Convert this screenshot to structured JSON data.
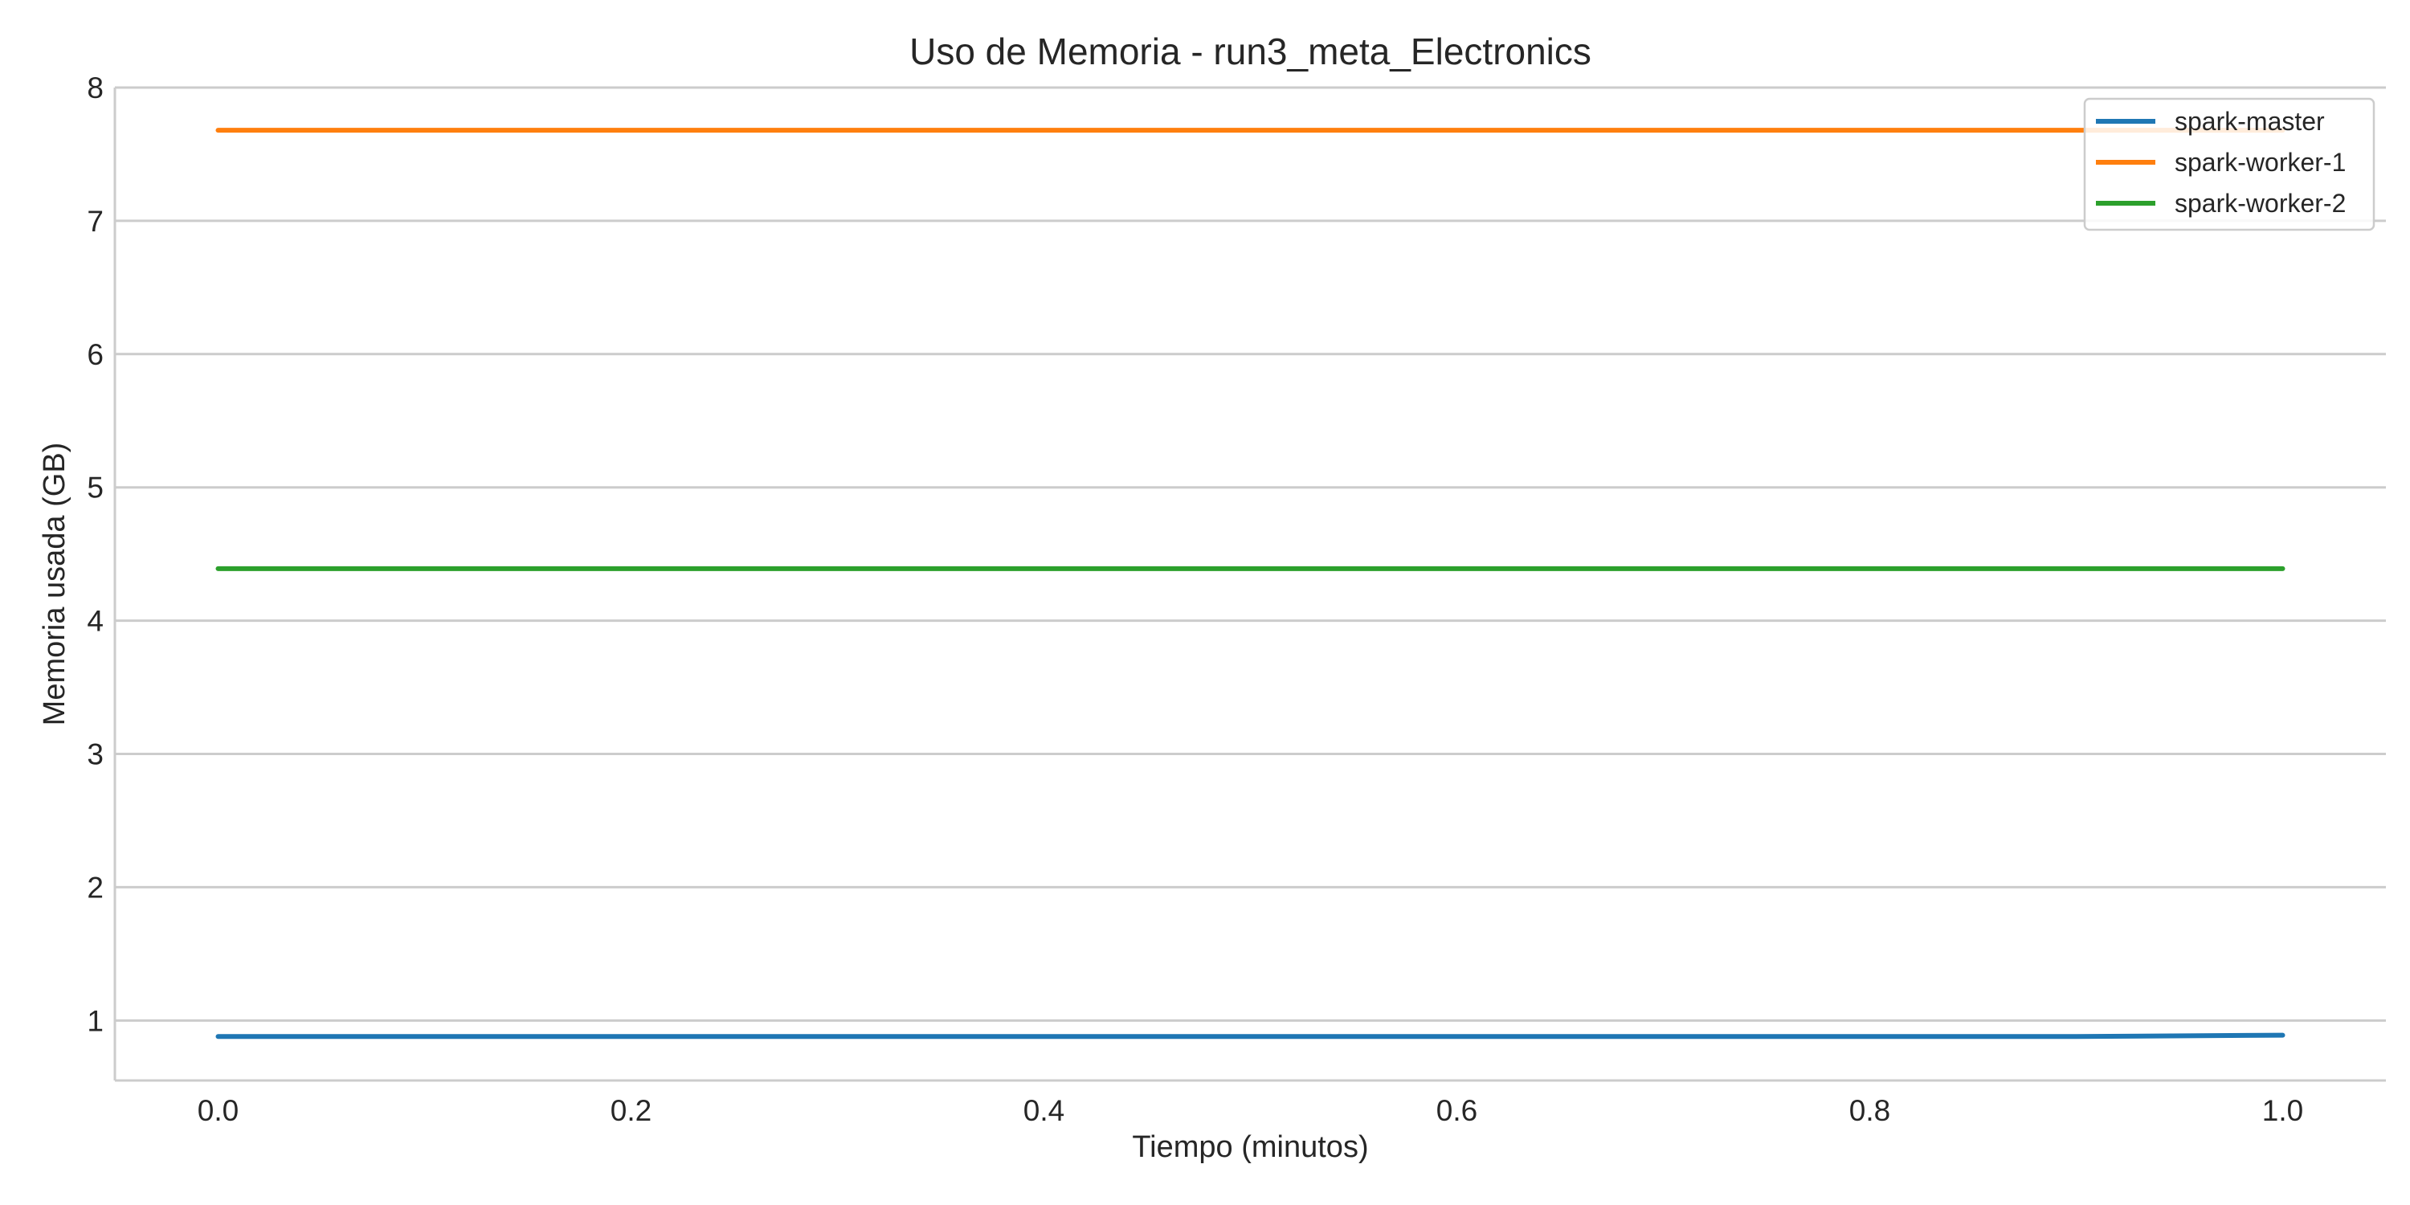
{
  "chart_data": {
    "type": "line",
    "title": "Uso de Memoria - run3_meta_Electronics",
    "xlabel": "Tiempo (minutos)",
    "ylabel": "Memoria usada (GB)",
    "xlim": [
      -0.05,
      1.05
    ],
    "ylim": [
      0.55,
      8.0
    ],
    "xticks": [
      0.0,
      0.2,
      0.4,
      0.6,
      0.8,
      1.0
    ],
    "xtick_labels": [
      "0.0",
      "0.2",
      "0.4",
      "0.6",
      "0.8",
      "1.0"
    ],
    "yticks": [
      1,
      2,
      3,
      4,
      5,
      6,
      7,
      8
    ],
    "ytick_labels": [
      "1",
      "2",
      "3",
      "4",
      "5",
      "6",
      "7",
      "8"
    ],
    "grid": "horizontal",
    "legend_position": "top-right",
    "series": [
      {
        "name": "spark-master",
        "color": "#1f77b4",
        "x": [
          0.0,
          0.9,
          1.0
        ],
        "y": [
          0.88,
          0.88,
          0.89
        ]
      },
      {
        "name": "spark-worker-1",
        "color": "#ff7f0e",
        "x": [
          0.0,
          1.0
        ],
        "y": [
          7.68,
          7.68
        ]
      },
      {
        "name": "spark-worker-2",
        "color": "#2ca02c",
        "x": [
          0.0,
          1.0
        ],
        "y": [
          4.39,
          4.39
        ]
      }
    ]
  }
}
